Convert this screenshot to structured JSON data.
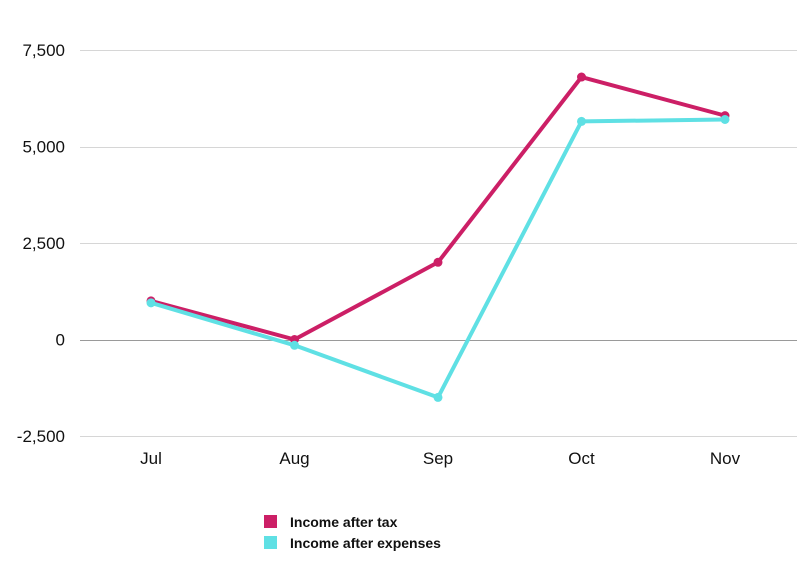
{
  "chart_data": {
    "type": "line",
    "categories": [
      "Jul",
      "Aug",
      "Sep",
      "Oct",
      "Nov"
    ],
    "series": [
      {
        "name": "Income after tax",
        "color": "#cc1f66",
        "values": [
          1000,
          0,
          2000,
          6800,
          5800
        ]
      },
      {
        "name": "Income after expenses",
        "color": "#5fe0e4",
        "values": [
          950,
          -150,
          -1500,
          5650,
          5700
        ]
      }
    ],
    "ylim": [
      -2500,
      7500
    ],
    "yticks": [
      -2500,
      0,
      2500,
      5000,
      7500
    ],
    "ytick_labels": [
      "-2,500",
      "0",
      "2,500",
      "5,000",
      "7,500"
    ],
    "grid": true,
    "legend_position": "bottom"
  }
}
